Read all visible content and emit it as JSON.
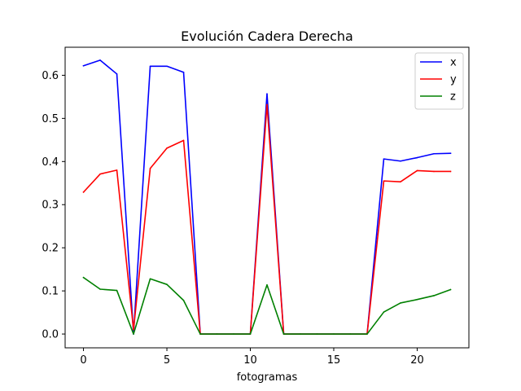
{
  "chart_data": {
    "type": "line",
    "title": "Evolución Cadera Derecha",
    "xlabel": "fotogramas",
    "ylabel": "",
    "xlim": [
      -1.1,
      23.1
    ],
    "ylim": [
      -0.032,
      0.665
    ],
    "xticks": [
      0,
      5,
      10,
      15,
      20
    ],
    "yticks": [
      0.0,
      0.1,
      0.2,
      0.3,
      0.4,
      0.5,
      0.6
    ],
    "xtick_labels": [
      "0",
      "5",
      "10",
      "15",
      "20"
    ],
    "ytick_labels": [
      "0.0",
      "0.1",
      "0.2",
      "0.3",
      "0.4",
      "0.5",
      "0.6"
    ],
    "grid": false,
    "legend_position": "top-right",
    "x": [
      0,
      1,
      2,
      3,
      4,
      5,
      6,
      7,
      8,
      9,
      10,
      11,
      12,
      13,
      14,
      15,
      16,
      17,
      18,
      19,
      20,
      21,
      22
    ],
    "series": [
      {
        "name": "x",
        "color": "#0000ff",
        "values": [
          0.622,
          0.635,
          0.603,
          0.0,
          0.621,
          0.621,
          0.607,
          0.0,
          0.0,
          0.0,
          0.0,
          0.557,
          0.0,
          0.0,
          0.0,
          0.0,
          0.0,
          0.0,
          0.406,
          0.401,
          0.409,
          0.418,
          0.419
        ]
      },
      {
        "name": "y",
        "color": "#ff0000",
        "values": [
          0.329,
          0.371,
          0.38,
          0.01,
          0.384,
          0.431,
          0.449,
          0.0,
          0.0,
          0.0,
          0.0,
          0.532,
          0.0,
          0.0,
          0.0,
          0.0,
          0.0,
          0.0,
          0.355,
          0.353,
          0.379,
          0.377,
          0.377
        ]
      },
      {
        "name": "z",
        "color": "#008000",
        "values": [
          0.131,
          0.104,
          0.101,
          0.0,
          0.128,
          0.115,
          0.078,
          0.0,
          0.0,
          0.0,
          0.0,
          0.114,
          0.0,
          0.0,
          0.0,
          0.0,
          0.0,
          0.0,
          0.051,
          0.072,
          0.08,
          0.089,
          0.103
        ]
      }
    ]
  }
}
